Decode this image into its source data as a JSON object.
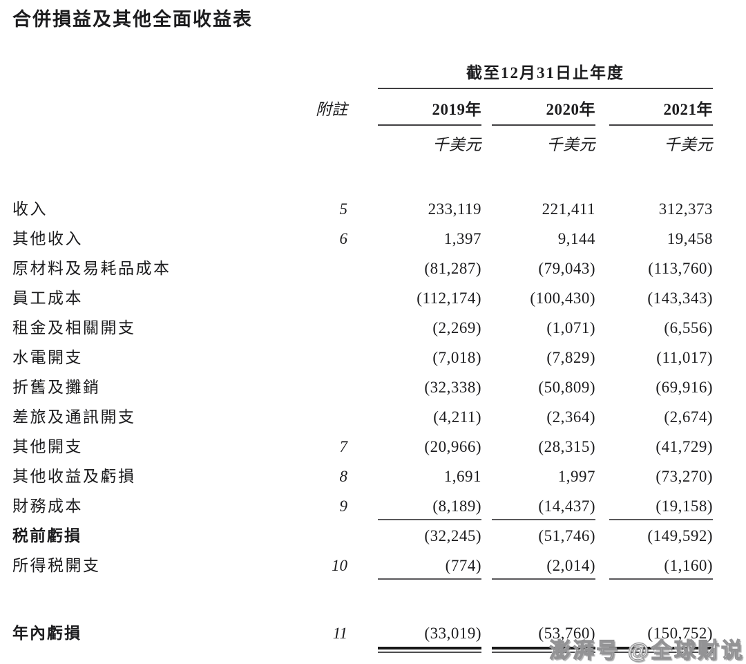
{
  "document": {
    "title": "合併損益及其他全面收益表"
  },
  "table": {
    "period_header": "截至12月31日止年度",
    "note_header": "附註",
    "year_headers": [
      "2019年",
      "2020年",
      "2021年"
    ],
    "unit_labels": [
      "千美元",
      "千美元",
      "千美元"
    ],
    "rows": [
      {
        "label": "收入",
        "note": "5",
        "values": [
          "233,119",
          "221,411",
          "312,373"
        ]
      },
      {
        "label": "其他收入",
        "note": "6",
        "values": [
          "1,397",
          "9,144",
          "19,458"
        ]
      },
      {
        "label": "原材料及易耗品成本",
        "note": "",
        "values": [
          "(81,287)",
          "(79,043)",
          "(113,760)"
        ]
      },
      {
        "label": "員工成本",
        "note": "",
        "values": [
          "(112,174)",
          "(100,430)",
          "(143,343)"
        ]
      },
      {
        "label": "租金及相關開支",
        "note": "",
        "values": [
          "(2,269)",
          "(1,071)",
          "(6,556)"
        ]
      },
      {
        "label": "水電開支",
        "note": "",
        "values": [
          "(7,018)",
          "(7,829)",
          "(11,017)"
        ]
      },
      {
        "label": "折舊及攤銷",
        "note": "",
        "values": [
          "(32,338)",
          "(50,809)",
          "(69,916)"
        ]
      },
      {
        "label": "差旅及通訊開支",
        "note": "",
        "values": [
          "(4,211)",
          "(2,364)",
          "(2,674)"
        ]
      },
      {
        "label": "其他開支",
        "note": "7",
        "values": [
          "(20,966)",
          "(28,315)",
          "(41,729)"
        ]
      },
      {
        "label": "其他收益及虧損",
        "note": "8",
        "values": [
          "1,691",
          "1,997",
          "(73,270)"
        ]
      },
      {
        "label": "財務成本",
        "note": "9",
        "values": [
          "(8,189)",
          "(14,437)",
          "(19,158)"
        ],
        "rule_below": "single"
      },
      {
        "label": "税前虧損",
        "note": "",
        "values": [
          "(32,245)",
          "(51,746)",
          "(149,592)"
        ],
        "bold_label": true
      },
      {
        "label": "所得税開支",
        "note": "10",
        "values": [
          "(774)",
          "(2,014)",
          "(1,160)"
        ],
        "rule_below": "single"
      },
      {
        "label": "年內虧損",
        "note": "11",
        "values": [
          "(33,019)",
          "(53,760)",
          "(150,752)"
        ],
        "bold_label": true,
        "rule_below": "double",
        "gap_before": true
      }
    ]
  },
  "watermark": {
    "text": "澎湃号 @全球财说"
  },
  "colors": {
    "text": "#1c1c1e",
    "rule_thin": "#59585b",
    "rule_thick": "#171717",
    "background": "#ffffff",
    "watermark_gray": "#939395"
  }
}
